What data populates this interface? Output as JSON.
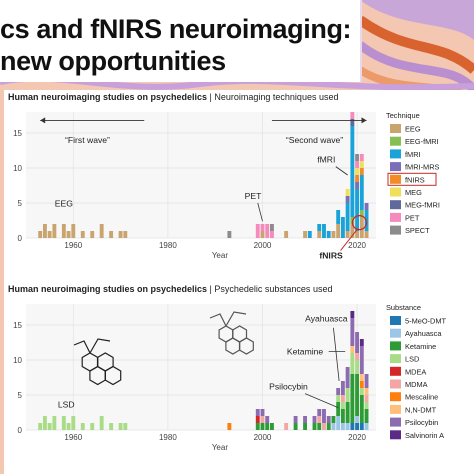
{
  "slide": {
    "title_line1": "cs and fNIRS neuroimaging:",
    "title_line2": "new opportunities"
  },
  "colors": {
    "EEG": "#c9a46e",
    "EEG-fMRI": "#86bf54",
    "fMRI": "#1aa3d8",
    "fMRI-MRS": "#7a6fb8",
    "fNIRS": "#f28c28",
    "MEG": "#f0df5a",
    "MEG-fMRI": "#5f6a9b",
    "PET": "#f58bbd",
    "SPECT": "#8c8c8c",
    "5-MeO-DMT": "#1f77b4",
    "Ayahuasca": "#9bc6e6",
    "Ketamine": "#2e9c36",
    "LSD": "#a9dc86",
    "MDEA": "#d62728",
    "MDMA": "#f4a6a6",
    "Mescaline": "#ff7f0e",
    "N,N-DMT": "#ffbf7a",
    "Psilocybin": "#8c6bb1",
    "Salvinorin A": "#5b2a86",
    "fnirs_highlight": "#c62828"
  },
  "chart_data": [
    {
      "type": "bar",
      "stacked": true,
      "title_bold": "Human neuroimaging studies on psychedelics",
      "title_rest": "Neuroimaging techniques used",
      "xlabel": "Year",
      "ylabel": "",
      "xlim": [
        1950,
        2024
      ],
      "ylim": [
        0,
        18
      ],
      "x_ticks": [
        1960,
        1980,
        2000,
        2020
      ],
      "y_ticks": [
        0,
        5,
        10,
        15
      ],
      "grid": true,
      "legend_title": "Technique",
      "legend_position": "right",
      "x": [
        1952,
        1953,
        1954,
        1955,
        1956,
        1957,
        1958,
        1959,
        1960,
        1961,
        1962,
        1963,
        1964,
        1965,
        1966,
        1967,
        1968,
        1969,
        1970,
        1971,
        1972,
        1993,
        1994,
        1995,
        1996,
        1997,
        1998,
        1999,
        2000,
        2001,
        2002,
        2003,
        2004,
        2005,
        2006,
        2007,
        2008,
        2009,
        2010,
        2011,
        2012,
        2013,
        2014,
        2015,
        2016,
        2017,
        2018,
        2019,
        2020,
        2021,
        2022
      ],
      "series": [
        {
          "name": "EEG",
          "values": [
            0,
            1,
            2,
            1,
            2,
            0,
            2,
            1,
            2,
            0,
            1,
            0,
            1,
            0,
            2,
            0,
            1,
            0,
            1,
            1,
            0,
            0,
            0,
            0,
            0,
            0,
            0,
            0,
            1,
            0,
            0,
            0,
            0,
            1,
            0,
            0,
            0,
            1,
            0,
            0,
            1,
            0,
            0,
            1,
            2,
            0,
            1,
            2,
            1,
            3,
            1
          ]
        },
        {
          "name": "EEG-fMRI",
          "values": [
            0,
            0,
            0,
            0,
            0,
            0,
            0,
            0,
            0,
            0,
            0,
            0,
            0,
            0,
            0,
            0,
            0,
            0,
            0,
            0,
            0,
            0,
            0,
            0,
            0,
            0,
            0,
            0,
            0,
            0,
            0,
            0,
            0,
            0,
            0,
            0,
            0,
            0,
            0,
            0,
            0,
            0,
            0,
            0,
            0,
            0,
            0,
            1,
            0,
            1,
            0
          ]
        },
        {
          "name": "fMRI",
          "values": [
            0,
            0,
            0,
            0,
            0,
            0,
            0,
            0,
            0,
            0,
            0,
            0,
            0,
            0,
            0,
            0,
            0,
            0,
            0,
            0,
            0,
            0,
            0,
            0,
            0,
            0,
            0,
            0,
            0,
            0,
            0,
            0,
            0,
            0,
            0,
            0,
            0,
            0,
            1,
            0,
            1,
            2,
            1,
            0,
            2,
            3,
            4,
            13,
            6,
            5,
            3
          ]
        },
        {
          "name": "fMRI-MRS",
          "values": [
            0,
            0,
            0,
            0,
            0,
            0,
            0,
            0,
            0,
            0,
            0,
            0,
            0,
            0,
            0,
            0,
            0,
            0,
            0,
            0,
            0,
            0,
            0,
            0,
            0,
            0,
            0,
            0,
            0,
            0,
            0,
            0,
            0,
            0,
            0,
            0,
            0,
            0,
            0,
            0,
            0,
            0,
            0,
            0,
            0,
            0,
            1,
            0,
            1,
            0,
            1
          ]
        },
        {
          "name": "fNIRS",
          "values": [
            0,
            0,
            0,
            0,
            0,
            0,
            0,
            0,
            0,
            0,
            0,
            0,
            0,
            0,
            0,
            0,
            0,
            0,
            0,
            0,
            0,
            0,
            0,
            0,
            0,
            0,
            0,
            0,
            0,
            0,
            0,
            0,
            0,
            0,
            0,
            0,
            0,
            0,
            0,
            0,
            0,
            0,
            0,
            0,
            0,
            0,
            0,
            0,
            1,
            1,
            0
          ]
        },
        {
          "name": "MEG",
          "values": [
            0,
            0,
            0,
            0,
            0,
            0,
            0,
            0,
            0,
            0,
            0,
            0,
            0,
            0,
            0,
            0,
            0,
            0,
            0,
            0,
            0,
            0,
            0,
            0,
            0,
            0,
            0,
            0,
            0,
            0,
            0,
            0,
            0,
            0,
            0,
            0,
            0,
            0,
            0,
            0,
            0,
            0,
            0,
            0,
            0,
            0,
            1,
            0,
            1,
            1,
            0
          ]
        },
        {
          "name": "MEG-fMRI",
          "values": [
            0,
            0,
            0,
            0,
            0,
            0,
            0,
            0,
            0,
            0,
            0,
            0,
            0,
            0,
            0,
            0,
            0,
            0,
            0,
            0,
            0,
            0,
            0,
            0,
            0,
            0,
            0,
            0,
            0,
            0,
            0,
            0,
            0,
            0,
            0,
            0,
            0,
            0,
            0,
            0,
            0,
            0,
            0,
            0,
            0,
            0,
            0,
            1,
            0,
            0,
            0
          ]
        },
        {
          "name": "PET",
          "values": [
            0,
            0,
            0,
            0,
            0,
            0,
            0,
            0,
            0,
            0,
            0,
            0,
            0,
            0,
            0,
            0,
            0,
            0,
            0,
            0,
            0,
            0,
            0,
            0,
            0,
            0,
            0,
            2,
            1,
            2,
            1,
            0,
            0,
            0,
            0,
            0,
            0,
            0,
            0,
            0,
            0,
            0,
            0,
            0,
            0,
            0,
            0,
            1,
            1,
            1,
            0
          ]
        },
        {
          "name": "SPECT",
          "values": [
            0,
            0,
            0,
            0,
            0,
            0,
            0,
            0,
            0,
            0,
            0,
            0,
            0,
            0,
            0,
            0,
            0,
            0,
            0,
            0,
            0,
            1,
            0,
            0,
            0,
            0,
            0,
            0,
            0,
            0,
            1,
            0,
            0,
            0,
            0,
            0,
            0,
            0,
            0,
            0,
            0,
            0,
            0,
            0,
            0,
            0,
            0,
            0,
            1,
            0,
            0
          ]
        }
      ],
      "annotations": {
        "first_wave": "“First wave”",
        "second_wave": "“Second wave”",
        "eeg": "EEG",
        "pet": "PET",
        "fmri": "fMRI",
        "fnirs": "fNIRS"
      }
    },
    {
      "type": "bar",
      "stacked": true,
      "title_bold": "Human neuroimaging studies on psychedelics",
      "title_rest": "Psychedelic substances used",
      "xlabel": "Year",
      "ylabel": "",
      "xlim": [
        1950,
        2024
      ],
      "ylim": [
        0,
        18
      ],
      "x_ticks": [
        1960,
        1980,
        2000,
        2020
      ],
      "y_ticks": [
        0,
        5,
        10,
        15
      ],
      "grid": true,
      "legend_title": "Substance",
      "legend_position": "right",
      "x": [
        1952,
        1953,
        1954,
        1955,
        1956,
        1957,
        1958,
        1959,
        1960,
        1961,
        1962,
        1963,
        1964,
        1965,
        1966,
        1967,
        1968,
        1969,
        1970,
        1971,
        1972,
        1993,
        1994,
        1995,
        1996,
        1997,
        1998,
        1999,
        2000,
        2001,
        2002,
        2003,
        2004,
        2005,
        2006,
        2007,
        2008,
        2009,
        2010,
        2011,
        2012,
        2013,
        2014,
        2015,
        2016,
        2017,
        2018,
        2019,
        2020,
        2021,
        2022
      ],
      "series": [
        {
          "name": "5-MeO-DMT",
          "values": [
            0,
            0,
            0,
            0,
            0,
            0,
            0,
            0,
            0,
            0,
            0,
            0,
            0,
            0,
            0,
            0,
            0,
            0,
            0,
            0,
            0,
            0,
            0,
            0,
            0,
            0,
            0,
            0,
            0,
            0,
            0,
            0,
            0,
            0,
            0,
            0,
            0,
            0,
            0,
            0,
            0,
            0,
            0,
            0,
            0,
            0,
            0,
            1,
            1,
            1,
            0
          ]
        },
        {
          "name": "Ayahuasca",
          "values": [
            0,
            0,
            0,
            0,
            0,
            0,
            0,
            0,
            0,
            0,
            0,
            0,
            0,
            0,
            0,
            0,
            0,
            0,
            0,
            0,
            0,
            0,
            0,
            0,
            0,
            0,
            0,
            0,
            0,
            0,
            0,
            0,
            0,
            0,
            0,
            0,
            0,
            0,
            0,
            0,
            0,
            0,
            0,
            1,
            2,
            1,
            1,
            0,
            1,
            0,
            1
          ]
        },
        {
          "name": "Ketamine",
          "values": [
            0,
            0,
            0,
            0,
            0,
            0,
            0,
            0,
            0,
            0,
            0,
            0,
            0,
            0,
            0,
            0,
            0,
            0,
            0,
            0,
            0,
            0,
            0,
            0,
            0,
            0,
            0,
            1,
            1,
            1,
            1,
            0,
            0,
            0,
            0,
            1,
            0,
            1,
            0,
            1,
            1,
            0,
            1,
            1,
            2,
            2,
            3,
            7,
            6,
            4,
            2
          ]
        },
        {
          "name": "LSD",
          "values": [
            0,
            1,
            2,
            1,
            2,
            0,
            2,
            1,
            2,
            0,
            1,
            0,
            1,
            0,
            2,
            0,
            1,
            0,
            1,
            1,
            0,
            0,
            0,
            0,
            0,
            0,
            0,
            0,
            0,
            0,
            0,
            0,
            0,
            0,
            0,
            0,
            0,
            0,
            0,
            0,
            0,
            0,
            0,
            0,
            1,
            1,
            2,
            3,
            2,
            1,
            1
          ]
        },
        {
          "name": "MDEA",
          "values": [
            0,
            0,
            0,
            0,
            0,
            0,
            0,
            0,
            0,
            0,
            0,
            0,
            0,
            0,
            0,
            0,
            0,
            0,
            0,
            0,
            0,
            0,
            0,
            0,
            0,
            0,
            0,
            1,
            0,
            0,
            0,
            0,
            0,
            0,
            0,
            0,
            0,
            0,
            0,
            0,
            0,
            0,
            0,
            0,
            0,
            0,
            0,
            0,
            0,
            0,
            0
          ]
        },
        {
          "name": "MDMA",
          "values": [
            0,
            0,
            0,
            0,
            0,
            0,
            0,
            0,
            0,
            0,
            0,
            0,
            0,
            0,
            0,
            0,
            0,
            0,
            0,
            0,
            0,
            0,
            0,
            0,
            0,
            0,
            0,
            0,
            1,
            0,
            0,
            0,
            0,
            1,
            0,
            0,
            0,
            0,
            0,
            0,
            1,
            1,
            0,
            0,
            0,
            1,
            0,
            0,
            1,
            0,
            1
          ]
        },
        {
          "name": "Mescaline",
          "values": [
            0,
            0,
            0,
            0,
            0,
            0,
            0,
            0,
            0,
            0,
            0,
            0,
            0,
            0,
            0,
            0,
            0,
            0,
            0,
            0,
            0,
            1,
            0,
            0,
            0,
            0,
            0,
            0,
            0,
            0,
            0,
            0,
            0,
            0,
            0,
            0,
            0,
            0,
            0,
            0,
            0,
            0,
            0,
            0,
            0,
            0,
            0,
            0,
            0,
            1,
            0
          ]
        },
        {
          "name": "N,N-DMT",
          "values": [
            0,
            0,
            0,
            0,
            0,
            0,
            0,
            0,
            0,
            0,
            0,
            0,
            0,
            0,
            0,
            0,
            0,
            0,
            0,
            0,
            0,
            0,
            0,
            0,
            0,
            0,
            0,
            0,
            0,
            0,
            0,
            0,
            0,
            0,
            0,
            0,
            0,
            0,
            0,
            0,
            0,
            0,
            0,
            0,
            0,
            0,
            0,
            1,
            0,
            1,
            1
          ]
        },
        {
          "name": "Psilocybin",
          "values": [
            0,
            0,
            0,
            0,
            0,
            0,
            0,
            0,
            0,
            0,
            0,
            0,
            0,
            0,
            0,
            0,
            0,
            0,
            0,
            0,
            0,
            0,
            0,
            0,
            0,
            0,
            0,
            1,
            1,
            1,
            0,
            0,
            0,
            0,
            0,
            1,
            0,
            1,
            0,
            1,
            1,
            2,
            1,
            0,
            1,
            2,
            3,
            4,
            3,
            4,
            2
          ]
        },
        {
          "name": "Salvinorin A",
          "values": [
            0,
            0,
            0,
            0,
            0,
            0,
            0,
            0,
            0,
            0,
            0,
            0,
            0,
            0,
            0,
            0,
            0,
            0,
            0,
            0,
            0,
            0,
            0,
            0,
            0,
            0,
            0,
            0,
            0,
            0,
            0,
            0,
            0,
            0,
            0,
            0,
            0,
            0,
            0,
            0,
            0,
            0,
            0,
            0,
            0,
            0,
            0,
            1,
            0,
            1,
            0
          ]
        }
      ],
      "annotations": {
        "lsd": "LSD",
        "ayahuasca": "Ayahuasca",
        "ketamine": "Ketamine",
        "psilocybin": "Psilocybin"
      }
    }
  ]
}
